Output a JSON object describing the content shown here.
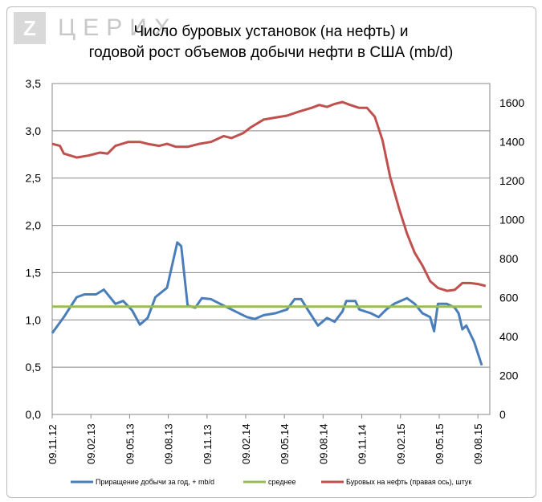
{
  "logo": {
    "mark": "Z",
    "text": "ЦЕРИХ"
  },
  "chart_data": {
    "type": "line",
    "title": [
      "Число буровых установок (на нефть) и",
      "годовой рост объемов добычи нефти в США (mb/d)"
    ],
    "x_ticks": [
      "09.11.12",
      "09.02.13",
      "09.05.13",
      "09.08.13",
      "09.11.13",
      "09.02.14",
      "09.05.14",
      "09.08.14",
      "09.11.14",
      "09.02.15",
      "09.05.15",
      "09.08.15"
    ],
    "x_unit": "months since 09.11.12",
    "y_left": {
      "ylim": [
        0,
        3.5
      ],
      "ticks": [
        "0,0",
        "0,5",
        "1,0",
        "1,5",
        "2,0",
        "2,5",
        "3,0",
        "3,5"
      ]
    },
    "y_right": {
      "ylim": [
        0,
        1700
      ],
      "ticks": [
        "0",
        "200",
        "400",
        "600",
        "800",
        "1000",
        "1200",
        "1400",
        "1600"
      ]
    },
    "grid": true,
    "legend_position": "bottom",
    "series": [
      {
        "name": "Приращение  добычи за год, + mb/d",
        "axis": "left",
        "color": "#4a7ebb",
        "x": [
          0,
          0.9,
          1.9,
          2.5,
          3.4,
          4.0,
          4.9,
          5.5,
          6.2,
          6.8,
          7.4,
          8.0,
          8.9,
          9.7,
          10.0,
          10.5,
          11.1,
          11.6,
          12.3,
          13.3,
          14.2,
          15.1,
          15.7,
          16.4,
          17.3,
          18.2,
          18.8,
          19.3,
          19.8,
          20.6,
          21.3,
          21.9,
          22.5,
          22.8,
          23.5,
          23.8,
          24.7,
          25.3,
          25.9,
          26.5,
          27.5,
          28.1,
          28.7,
          29.3,
          29.6,
          29.9,
          30.6,
          31.2,
          31.5,
          31.8,
          32.1,
          32.7,
          33.3
        ],
        "values": [
          0.86,
          1.03,
          1.24,
          1.27,
          1.27,
          1.32,
          1.17,
          1.2,
          1.1,
          0.95,
          1.02,
          1.24,
          1.34,
          1.82,
          1.78,
          1.15,
          1.13,
          1.23,
          1.22,
          1.15,
          1.09,
          1.03,
          1.01,
          1.05,
          1.07,
          1.11,
          1.22,
          1.22,
          1.11,
          0.94,
          1.02,
          0.98,
          1.09,
          1.2,
          1.2,
          1.11,
          1.07,
          1.03,
          1.11,
          1.17,
          1.23,
          1.17,
          1.07,
          1.03,
          0.88,
          1.17,
          1.17,
          1.13,
          1.07,
          0.9,
          0.94,
          0.77,
          0.52
        ]
      },
      {
        "name": "среднее",
        "axis": "left",
        "color": "#9bbb59",
        "x": [
          0,
          33.3
        ],
        "values": [
          1.14,
          1.14
        ]
      },
      {
        "name": "Буровых на нефть (правая ось), штук",
        "axis": "right",
        "color": "#c0504d",
        "x": [
          0,
          0.6,
          0.9,
          1.9,
          2.8,
          3.7,
          4.3,
          4.9,
          5.9,
          6.8,
          7.4,
          8.3,
          8.9,
          9.6,
          10.5,
          11.4,
          12.3,
          13.3,
          13.9,
          14.8,
          15.4,
          16.4,
          17.3,
          18.2,
          19.1,
          20.1,
          20.7,
          21.3,
          21.9,
          22.5,
          23.1,
          23.8,
          24.4,
          25.0,
          25.6,
          26.2,
          26.9,
          27.5,
          28.1,
          28.7,
          29.3,
          29.9,
          30.6,
          31.2,
          31.8,
          32.4,
          33.0,
          33.6
        ],
        "values": [
          1390,
          1380,
          1340,
          1320,
          1330,
          1345,
          1340,
          1380,
          1400,
          1400,
          1390,
          1380,
          1390,
          1375,
          1375,
          1390,
          1400,
          1430,
          1420,
          1445,
          1475,
          1515,
          1525,
          1535,
          1555,
          1575,
          1590,
          1580,
          1595,
          1605,
          1590,
          1575,
          1575,
          1530,
          1410,
          1220,
          1055,
          930,
          830,
          765,
          685,
          650,
          635,
          640,
          675,
          675,
          670,
          660
        ]
      }
    ]
  }
}
